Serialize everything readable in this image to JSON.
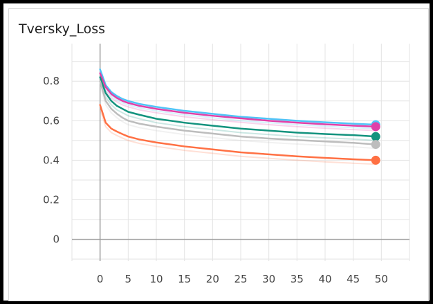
{
  "chart_data": {
    "type": "line",
    "title": "Tversky_Loss",
    "xlabel": "",
    "ylabel": "",
    "xlim": [
      -5,
      55
    ],
    "ylim": [
      -0.11,
      0.99
    ],
    "x_ticks": [
      0,
      5,
      10,
      15,
      20,
      25,
      30,
      35,
      40,
      45,
      50
    ],
    "y_ticks": [
      0,
      0.2,
      0.4,
      0.6,
      0.8
    ],
    "grid": true,
    "x": [
      0,
      1,
      2,
      3,
      4,
      5,
      7,
      10,
      15,
      20,
      25,
      30,
      35,
      40,
      45,
      49
    ],
    "series": [
      {
        "color": "#4fc3f7",
        "values": [
          0.86,
          0.78,
          0.745,
          0.725,
          0.71,
          0.7,
          0.685,
          0.67,
          0.65,
          0.635,
          0.62,
          0.61,
          0.6,
          0.592,
          0.585,
          0.58
        ]
      },
      {
        "color": "#e040a8",
        "values": [
          0.84,
          0.77,
          0.735,
          0.715,
          0.7,
          0.69,
          0.675,
          0.66,
          0.64,
          0.625,
          0.612,
          0.6,
          0.59,
          0.582,
          0.575,
          0.57
        ]
      },
      {
        "color": "#12937e",
        "values": [
          0.82,
          0.74,
          0.7,
          0.675,
          0.66,
          0.645,
          0.63,
          0.61,
          0.59,
          0.575,
          0.56,
          0.55,
          0.54,
          0.533,
          0.527,
          0.52
        ]
      },
      {
        "color": "#bdbdbd",
        "values": [
          0.8,
          0.7,
          0.66,
          0.635,
          0.615,
          0.6,
          0.585,
          0.57,
          0.55,
          0.535,
          0.52,
          0.51,
          0.502,
          0.495,
          0.488,
          0.48
        ]
      },
      {
        "color": "#ff7043",
        "values": [
          0.68,
          0.59,
          0.56,
          0.545,
          0.532,
          0.52,
          0.505,
          0.49,
          0.47,
          0.455,
          0.44,
          0.43,
          0.42,
          0.412,
          0.405,
          0.4
        ]
      }
    ]
  }
}
